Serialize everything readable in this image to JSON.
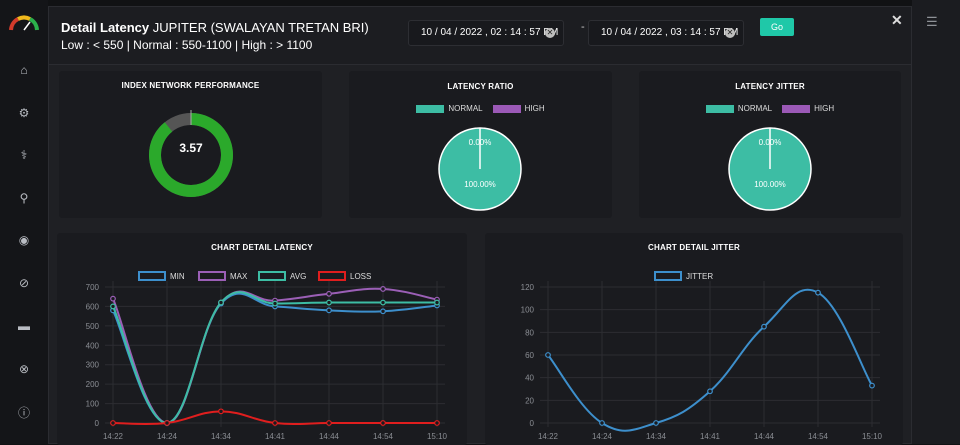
{
  "header": {
    "title_bold": "Detail Latency",
    "title_rest": "JUPITER (SWALAYAN TRETAN BRI)",
    "subtitle": "Low : < 550 | Normal : 550-1100 | High : > 1100",
    "date_from": "10 / 04 / 2022 ,  02 : 14 : 57   PM",
    "date_to": "10 / 04 / 2022 ,  03 : 14 : 57   PM",
    "date_separator": "-",
    "go_label": "Go",
    "close_label": "✕",
    "date_clear_glyph": "✕"
  },
  "sidebar": {
    "icons": [
      "home-icon",
      "settings-icon",
      "stethoscope-icon",
      "search-icon",
      "compass-icon",
      "block-icon",
      "folder-icon",
      "help-ring-icon",
      "info-icon"
    ],
    "glyphs": [
      "⌂",
      "⚙",
      "⚕",
      "⚲",
      "◉",
      "⊘",
      "▬",
      "⊗",
      "ⓘ"
    ]
  },
  "panels": {
    "index_title": "INDEX NETWORK PERFORMANCE",
    "index_value": "3.57",
    "ratio_title": "LATENCY RATIO",
    "jitter_title": "LATENCY JITTER",
    "legend_normal": "NORMAL",
    "legend_high": "HIGH",
    "ratio_high_label": "0.00%",
    "ratio_normal_label": "100.00%",
    "jitter_high_label": "0.00%",
    "jitter_normal_label": "100.00%",
    "latency_chart_title": "CHART DETAIL LATENCY",
    "jitter_chart_title": "CHART DETAIL JITTER"
  },
  "colors": {
    "normal": "#3dbda4",
    "high": "#9b59b6",
    "min": "#3d8fcc",
    "max": "#9b5fb6",
    "avg": "#3dbda4",
    "loss": "#e01e1e",
    "gauge": "#2ba92b",
    "gauge_rest": "#555555"
  },
  "chart_data": [
    {
      "type": "pie",
      "title": "INDEX NETWORK PERFORMANCE",
      "value": 3.57,
      "max": 4
    },
    {
      "type": "pie",
      "title": "LATENCY RATIO",
      "categories": [
        "NORMAL",
        "HIGH"
      ],
      "values": [
        100,
        0
      ]
    },
    {
      "type": "pie",
      "title": "LATENCY JITTER",
      "categories": [
        "NORMAL",
        "HIGH"
      ],
      "values": [
        100,
        0
      ]
    },
    {
      "type": "line",
      "title": "CHART DETAIL LATENCY",
      "categories": [
        "14:22",
        "14:24",
        "14:34",
        "14:41",
        "14:44",
        "14:54",
        "15:10"
      ],
      "ylim": [
        0,
        700
      ],
      "yticks": [
        0,
        100,
        200,
        300,
        400,
        500,
        600,
        700
      ],
      "series": [
        {
          "name": "MIN",
          "values": [
            580,
            0,
            615,
            600,
            580,
            575,
            605
          ]
        },
        {
          "name": "MAX",
          "values": [
            640,
            0,
            620,
            630,
            665,
            690,
            635
          ]
        },
        {
          "name": "AVG",
          "values": [
            600,
            0,
            620,
            615,
            620,
            620,
            620
          ]
        },
        {
          "name": "LOSS",
          "values": [
            0,
            0,
            60,
            0,
            0,
            0,
            0
          ]
        }
      ]
    },
    {
      "type": "line",
      "title": "CHART DETAIL JITTER",
      "categories": [
        "14:22",
        "14:24",
        "14:34",
        "14:41",
        "14:44",
        "14:54",
        "15:10"
      ],
      "ylim": [
        0,
        120
      ],
      "yticks": [
        0,
        20,
        40,
        60,
        80,
        100,
        120
      ],
      "series": [
        {
          "name": "JITTER",
          "values": [
            60,
            0,
            0,
            28,
            85,
            115,
            33
          ]
        }
      ]
    }
  ]
}
